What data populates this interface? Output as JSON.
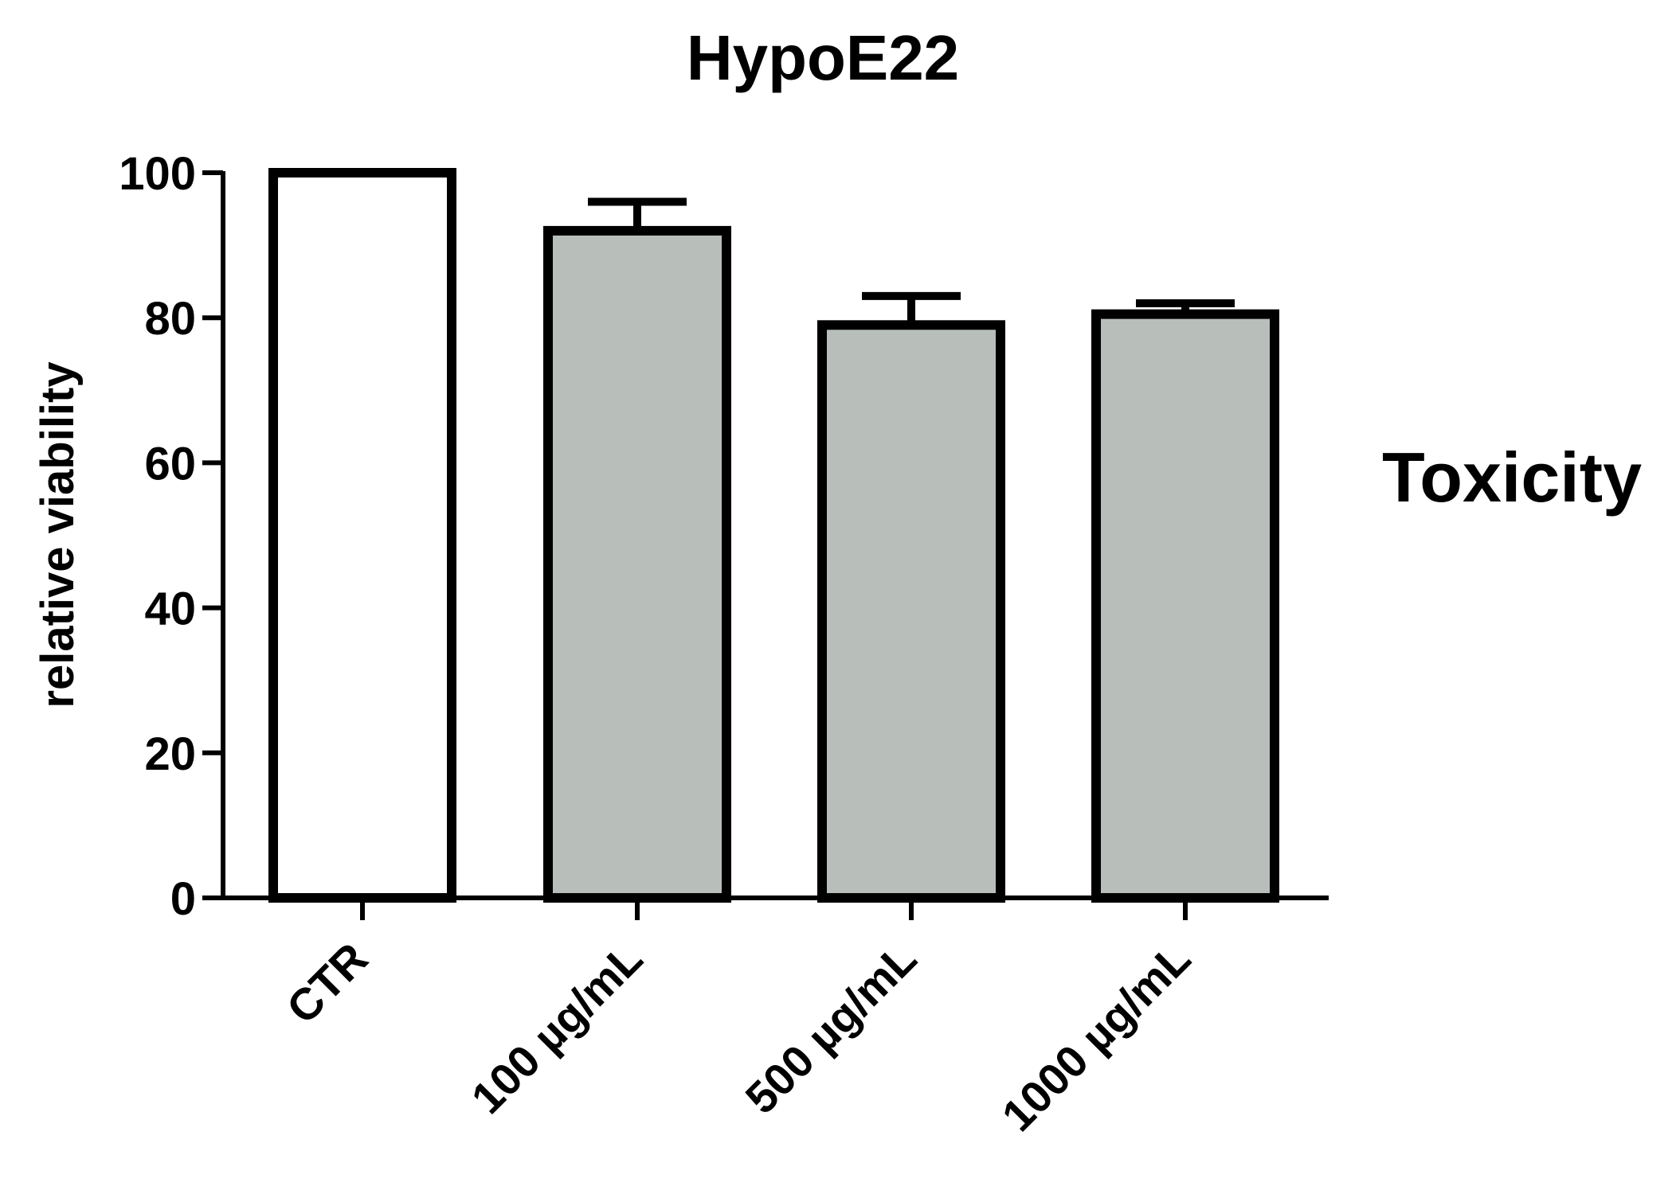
{
  "chart_data": {
    "type": "bar",
    "title": "HypoE22",
    "side_label": "Toxicity",
    "xlabel": "",
    "ylabel": "relative viability",
    "categories": [
      "CTR",
      "100 µg/mL",
      "500 µg/mL",
      "1000 µg/mL"
    ],
    "values": [
      100,
      92,
      79,
      80.5
    ],
    "error_upper": [
      0,
      4,
      4,
      1.5
    ],
    "bar_colors": [
      "#ffffff",
      "#b8bfbb",
      "#b8bfbb",
      "#b8bfbb"
    ],
    "ylim": [
      0,
      100
    ],
    "yticks": [
      0,
      20,
      40,
      60,
      80,
      100
    ],
    "grid": false,
    "legend": "none"
  }
}
